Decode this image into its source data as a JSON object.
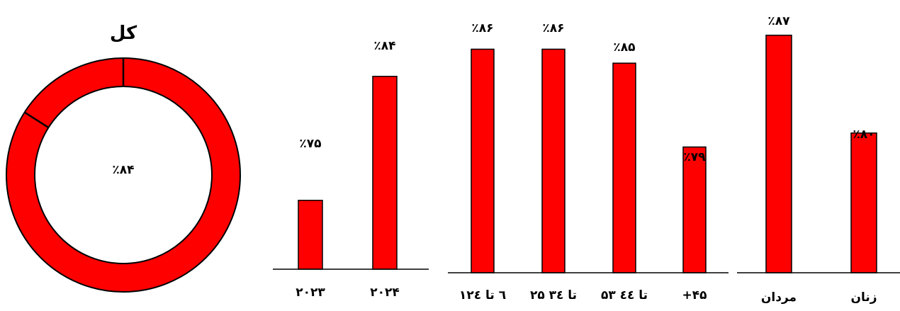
{
  "chart_data": [
    {
      "type": "pie",
      "title": "کل",
      "values": [
        84,
        16
      ],
      "center_label": "٪۸۴",
      "colors": [
        "#ff0000",
        "#ff0000"
      ]
    },
    {
      "type": "bar",
      "categories": [
        "۲۰۲۳",
        "۲۰۲۴"
      ],
      "values": [
        75,
        84
      ],
      "data_labels": [
        "٪۷۵",
        "٪۸۴"
      ],
      "ylim": [
        70,
        88
      ],
      "color": "#ff0000"
    },
    {
      "type": "bar",
      "categories": [
        "۱٦ تا ۲٤",
        "۲۵ تا ۳٤",
        "۵۳ تا ٤٤",
        "+۴۵"
      ],
      "values": [
        86,
        86,
        85,
        79
      ],
      "data_labels": [
        "٪۸۶",
        "٪۸۶",
        "٪۸۵",
        "٪۷۹"
      ],
      "ylim": [
        70,
        88
      ],
      "color": "#ff0000"
    },
    {
      "type": "bar",
      "categories": [
        "مردان",
        "زنان"
      ],
      "values": [
        87,
        80
      ],
      "data_labels": [
        "٪۸۷",
        "٪۸۰"
      ],
      "ylim": [
        70,
        88
      ],
      "color": "#ff0000"
    }
  ]
}
